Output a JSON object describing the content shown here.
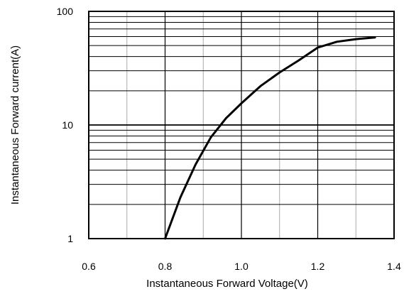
{
  "chart_data": {
    "type": "line",
    "title": "",
    "xlabel": "Instantaneous Forward Voltage(V)",
    "ylabel": "Instantaneous Forward current(A)",
    "xlim": [
      0.6,
      1.4
    ],
    "ylim": [
      1,
      100
    ],
    "y_scale": "log",
    "x_ticks": [
      0.6,
      0.8,
      1.0,
      1.2,
      1.4
    ],
    "x_tick_labels": [
      "0.6",
      "0.8",
      "1.0",
      "1.2",
      "1.4"
    ],
    "x_minor_grid": [
      0.7,
      0.9,
      1.1,
      1.3
    ],
    "y_ticks": [
      1,
      10,
      100
    ],
    "y_tick_labels": [
      "1",
      "10",
      "100"
    ],
    "grid": true,
    "line_color": "#000000",
    "grid_color": "#000000",
    "minor_grid_color": "#aaaaaa",
    "series": [
      {
        "x": [
          0.8,
          0.84,
          0.88,
          0.92,
          0.96,
          1.0,
          1.05,
          1.1,
          1.15,
          1.2,
          1.25,
          1.3,
          1.35
        ],
        "y": [
          1.0,
          2.3,
          4.5,
          7.8,
          11.5,
          15.5,
          22,
          29,
          37,
          48,
          54,
          57,
          59
        ]
      }
    ]
  }
}
